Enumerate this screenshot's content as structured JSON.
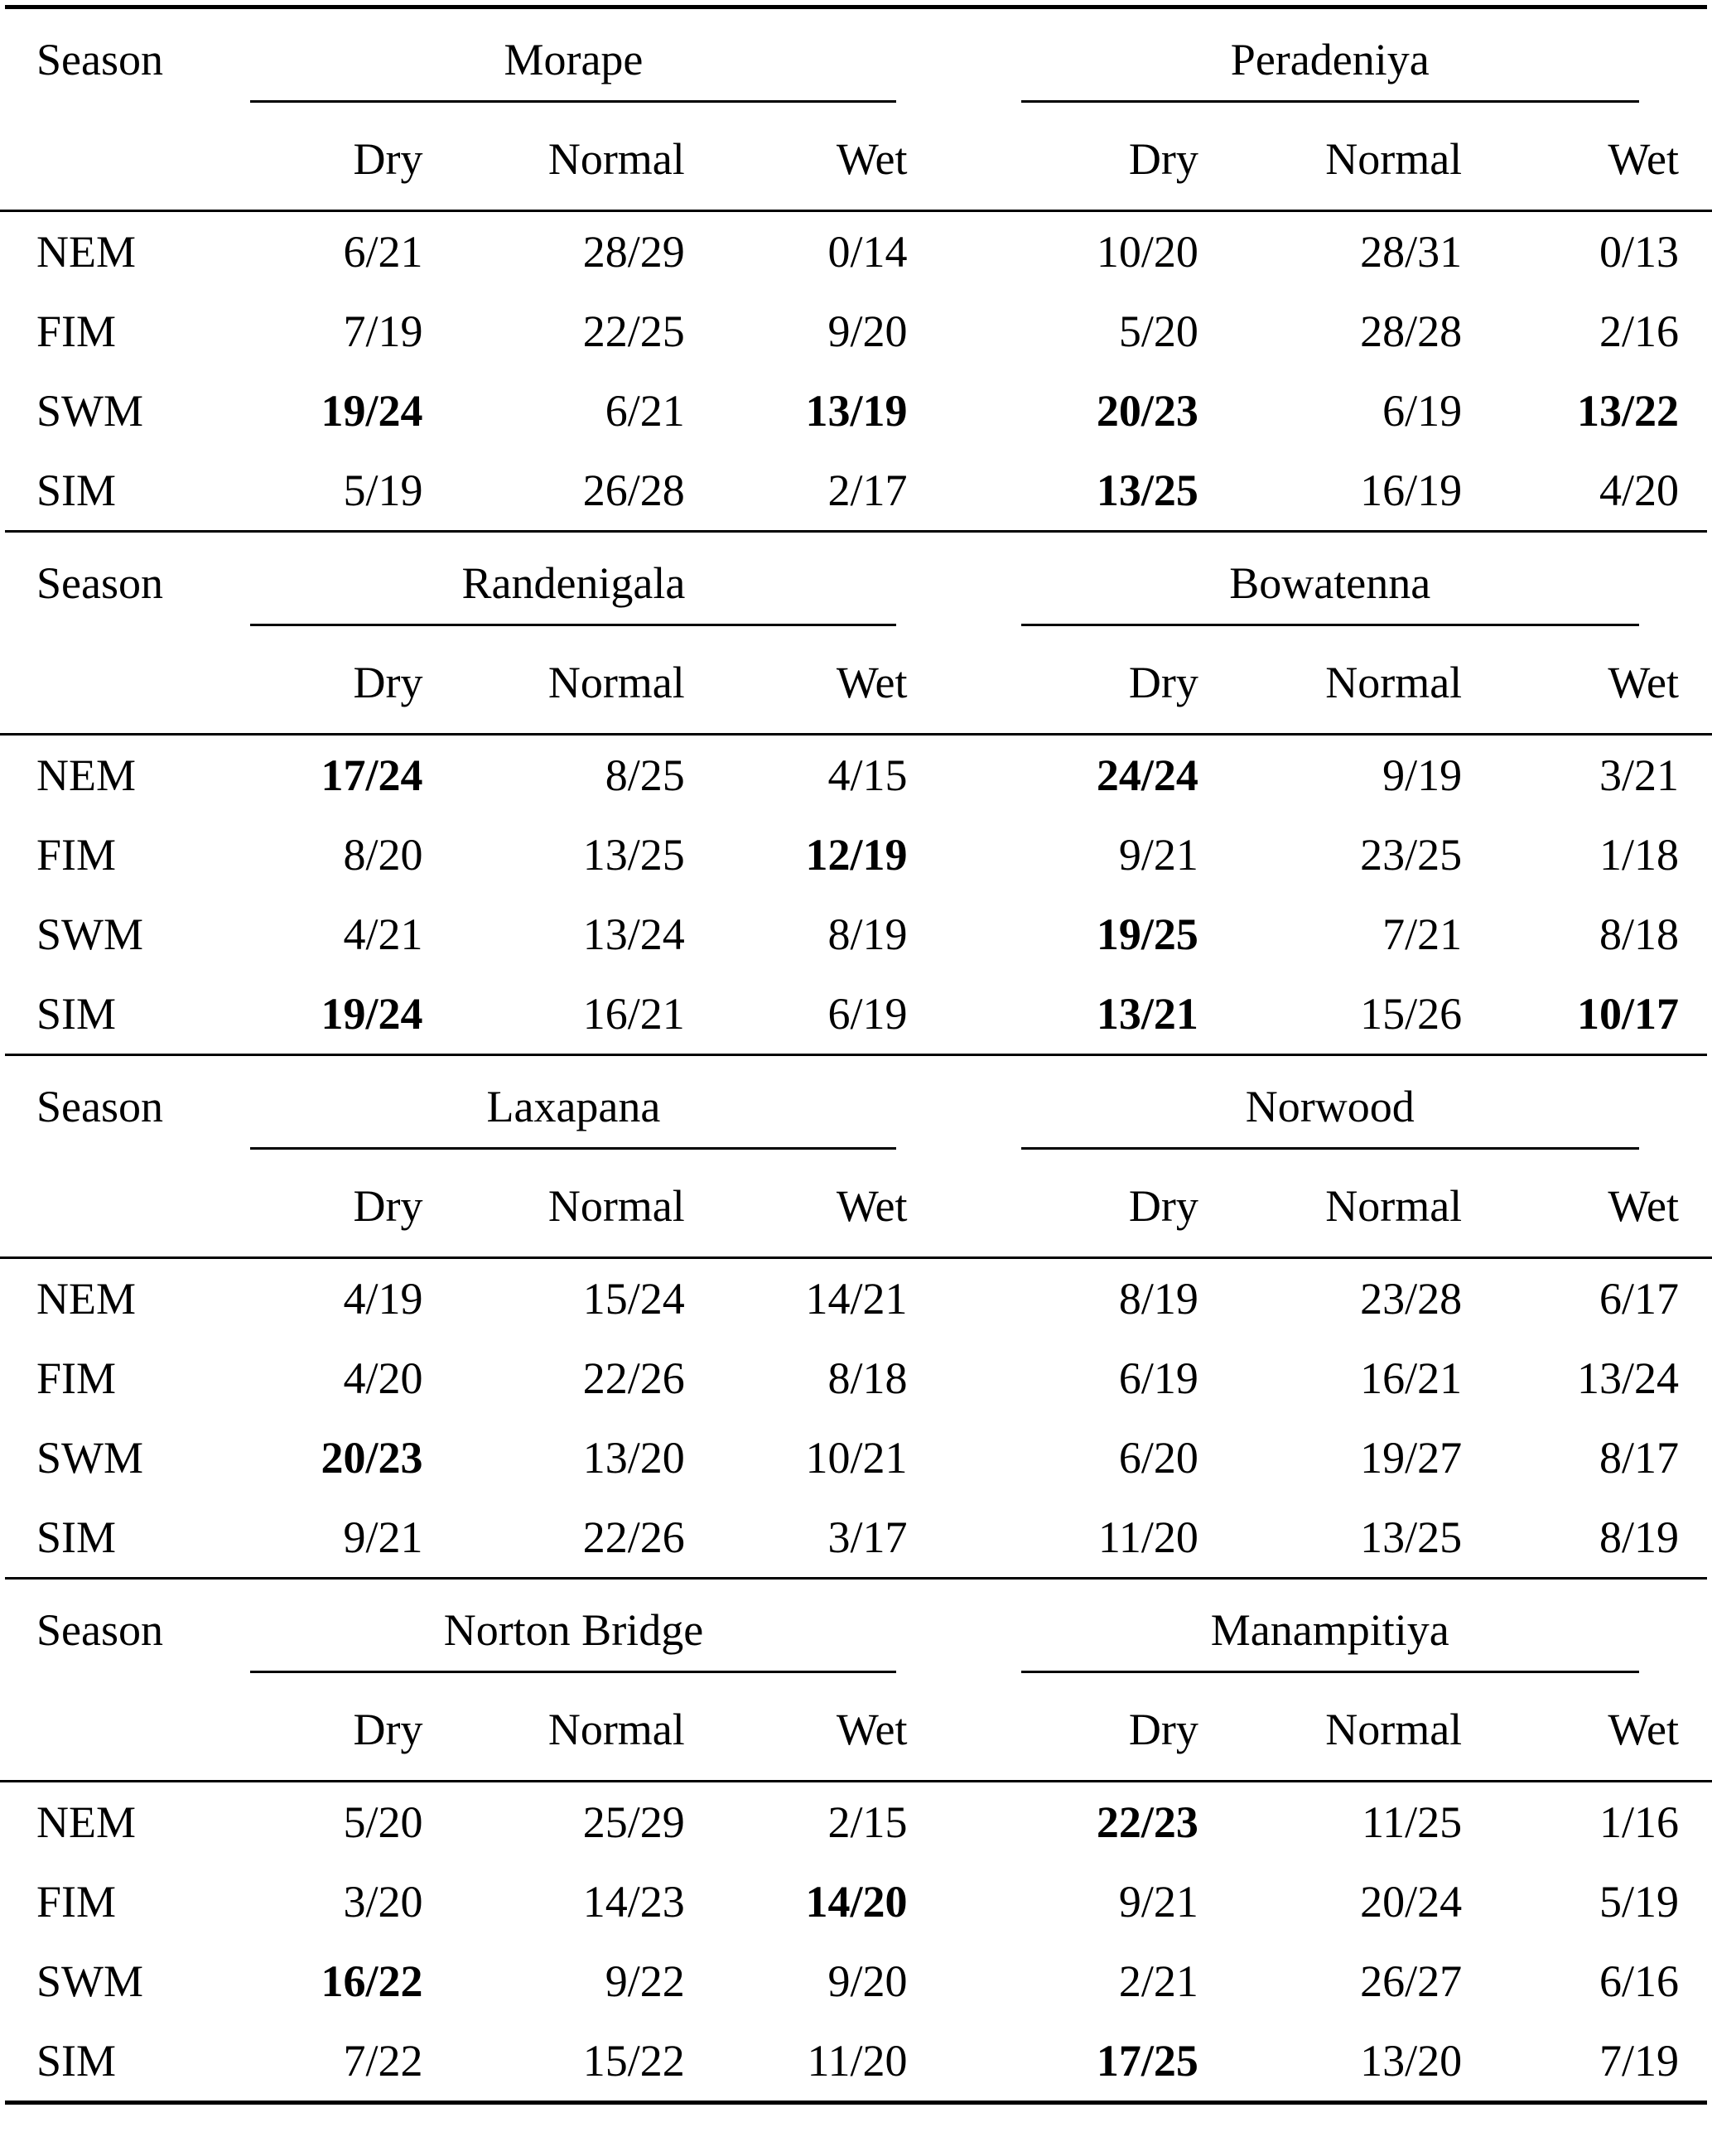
{
  "page": {
    "background": "#ffffff",
    "text_color": "#000000",
    "rule_color": "#000000"
  },
  "table": {
    "season_header": "Season",
    "sub_columns": [
      "Dry",
      "Normal",
      "Wet"
    ],
    "row_labels": [
      "NEM",
      "FIM",
      "SWM",
      "SIM"
    ],
    "blocks": [
      {
        "stations": [
          "Morape",
          "Peradeniya"
        ],
        "rows": [
          {
            "season": "NEM",
            "values": [
              "6/21",
              "28/29",
              "0/14",
              "10/20",
              "28/31",
              "0/13"
            ],
            "bold": [
              false,
              false,
              false,
              false,
              false,
              false
            ]
          },
          {
            "season": "FIM",
            "values": [
              "7/19",
              "22/25",
              "9/20",
              "5/20",
              "28/28",
              "2/16"
            ],
            "bold": [
              false,
              false,
              false,
              false,
              false,
              false
            ]
          },
          {
            "season": "SWM",
            "values": [
              "19/24",
              "6/21",
              "13/19",
              "20/23",
              "6/19",
              "13/22"
            ],
            "bold": [
              true,
              false,
              true,
              true,
              false,
              true
            ]
          },
          {
            "season": "SIM",
            "values": [
              "5/19",
              "26/28",
              "2/17",
              "13/25",
              "16/19",
              "4/20"
            ],
            "bold": [
              false,
              false,
              false,
              true,
              false,
              false
            ]
          }
        ]
      },
      {
        "stations": [
          "Randenigala",
          "Bowatenna"
        ],
        "rows": [
          {
            "season": "NEM",
            "values": [
              "17/24",
              "8/25",
              "4/15",
              "24/24",
              "9/19",
              "3/21"
            ],
            "bold": [
              true,
              false,
              false,
              true,
              false,
              false
            ]
          },
          {
            "season": "FIM",
            "values": [
              "8/20",
              "13/25",
              "12/19",
              "9/21",
              "23/25",
              "1/18"
            ],
            "bold": [
              false,
              false,
              true,
              false,
              false,
              false
            ]
          },
          {
            "season": "SWM",
            "values": [
              "4/21",
              "13/24",
              "8/19",
              "19/25",
              "7/21",
              "8/18"
            ],
            "bold": [
              false,
              false,
              false,
              true,
              false,
              false
            ]
          },
          {
            "season": "SIM",
            "values": [
              "19/24",
              "16/21",
              "6/19",
              "13/21",
              "15/26",
              "10/17"
            ],
            "bold": [
              true,
              false,
              false,
              true,
              false,
              true
            ]
          }
        ]
      },
      {
        "stations": [
          "Laxapana",
          "Norwood"
        ],
        "rows": [
          {
            "season": "NEM",
            "values": [
              "4/19",
              "15/24",
              "14/21",
              "8/19",
              "23/28",
              "6/17"
            ],
            "bold": [
              false,
              false,
              false,
              false,
              false,
              false
            ]
          },
          {
            "season": "FIM",
            "values": [
              "4/20",
              "22/26",
              "8/18",
              "6/19",
              "16/21",
              "13/24"
            ],
            "bold": [
              false,
              false,
              false,
              false,
              false,
              false
            ]
          },
          {
            "season": "SWM",
            "values": [
              "20/23",
              "13/20",
              "10/21",
              "6/20",
              "19/27",
              "8/17"
            ],
            "bold": [
              true,
              false,
              false,
              false,
              false,
              false
            ]
          },
          {
            "season": "SIM",
            "values": [
              "9/21",
              "22/26",
              "3/17",
              "11/20",
              "13/25",
              "8/19"
            ],
            "bold": [
              false,
              false,
              false,
              false,
              false,
              false
            ]
          }
        ]
      },
      {
        "stations": [
          "Norton Bridge",
          "Manampitiya"
        ],
        "rows": [
          {
            "season": "NEM",
            "values": [
              "5/20",
              "25/29",
              "2/15",
              "22/23",
              "11/25",
              "1/16"
            ],
            "bold": [
              false,
              false,
              false,
              true,
              false,
              false
            ]
          },
          {
            "season": "FIM",
            "values": [
              "3/20",
              "14/23",
              "14/20",
              "9/21",
              "20/24",
              "5/19"
            ],
            "bold": [
              false,
              false,
              true,
              false,
              false,
              false
            ]
          },
          {
            "season": "SWM",
            "values": [
              "16/22",
              "9/22",
              "9/20",
              "2/21",
              "26/27",
              "6/16"
            ],
            "bold": [
              true,
              false,
              false,
              false,
              false,
              false
            ]
          },
          {
            "season": "SIM",
            "values": [
              "7/22",
              "15/22",
              "11/20",
              "17/25",
              "13/20",
              "7/19"
            ],
            "bold": [
              false,
              false,
              false,
              true,
              false,
              false
            ]
          }
        ]
      }
    ]
  }
}
